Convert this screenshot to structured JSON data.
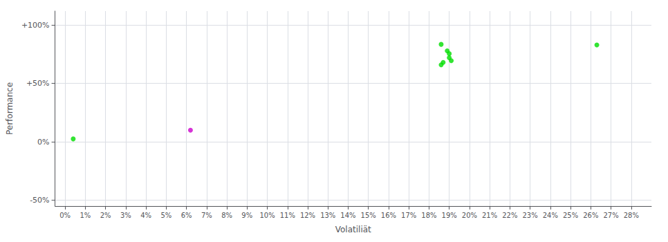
{
  "chart_data": {
    "type": "scatter",
    "xlabel": "Volatiliät",
    "ylabel": "Performance",
    "xlim": [
      -0.005,
      0.29
    ],
    "ylim": [
      -0.55,
      1.12
    ],
    "xticks": [
      {
        "value": 0.0,
        "label": "0%"
      },
      {
        "value": 0.01,
        "label": "1%"
      },
      {
        "value": 0.02,
        "label": "2%"
      },
      {
        "value": 0.03,
        "label": "3%"
      },
      {
        "value": 0.04,
        "label": "4%"
      },
      {
        "value": 0.05,
        "label": "5%"
      },
      {
        "value": 0.06,
        "label": "6%"
      },
      {
        "value": 0.07,
        "label": "7%"
      },
      {
        "value": 0.08,
        "label": "8%"
      },
      {
        "value": 0.09,
        "label": "9%"
      },
      {
        "value": 0.1,
        "label": "10%"
      },
      {
        "value": 0.11,
        "label": "11%"
      },
      {
        "value": 0.12,
        "label": "12%"
      },
      {
        "value": 0.13,
        "label": "13%"
      },
      {
        "value": 0.14,
        "label": "14%"
      },
      {
        "value": 0.15,
        "label": "15%"
      },
      {
        "value": 0.16,
        "label": "16%"
      },
      {
        "value": 0.17,
        "label": "17%"
      },
      {
        "value": 0.18,
        "label": "18%"
      },
      {
        "value": 0.19,
        "label": "19%"
      },
      {
        "value": 0.2,
        "label": "20%"
      },
      {
        "value": 0.21,
        "label": "21%"
      },
      {
        "value": 0.22,
        "label": "22%"
      },
      {
        "value": 0.23,
        "label": "23%"
      },
      {
        "value": 0.24,
        "label": "24%"
      },
      {
        "value": 0.25,
        "label": "25%"
      },
      {
        "value": 0.26,
        "label": "26%"
      },
      {
        "value": 0.27,
        "label": "27%"
      },
      {
        "value": 0.28,
        "label": "28%"
      }
    ],
    "yticks": [
      {
        "value": -0.5,
        "label": "-50%"
      },
      {
        "value": 0.0,
        "label": "0%"
      },
      {
        "value": 0.5,
        "label": "+50%"
      },
      {
        "value": 1.0,
        "label": "+100%"
      }
    ],
    "grid": true,
    "series": [
      {
        "color": "#00dd00",
        "x": [
          0.186,
          0.189,
          0.19,
          0.19,
          0.191,
          0.187,
          0.186,
          0.263
        ],
        "values": [
          0.835,
          0.78,
          0.755,
          0.72,
          0.695,
          0.68,
          0.66,
          0.83
        ]
      },
      {
        "color": "#cc00cc",
        "x": [
          0.062
        ],
        "values": [
          0.1
        ]
      },
      {
        "color": "#00dd00",
        "x": [
          0.004
        ],
        "values": [
          0.025
        ]
      }
    ]
  }
}
